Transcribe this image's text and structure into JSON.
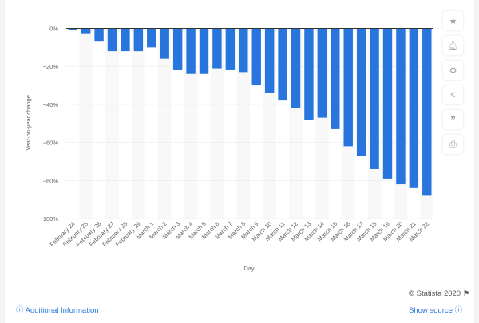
{
  "chart_data": {
    "type": "bar",
    "title": "",
    "xlabel": "Day",
    "ylabel": "Year-on-year change",
    "ylim": [
      -100,
      0
    ],
    "yticks": [
      0,
      -20,
      -40,
      -60,
      -80,
      -100
    ],
    "ytick_labels": [
      "0%",
      "−20%",
      "−40%",
      "−60%",
      "−80%",
      "−100%"
    ],
    "categories": [
      "February 24",
      "February 25",
      "February 26",
      "February 27",
      "February 28",
      "February 29",
      "March 1",
      "March 2",
      "March 3",
      "March 4",
      "March 5",
      "March 6",
      "March 7",
      "March 8",
      "March 9",
      "March 10",
      "March 11",
      "March 12",
      "March 13",
      "March 14",
      "March 15",
      "March 16",
      "March 17",
      "March 18",
      "March 19",
      "March 20",
      "March 21",
      "March 22"
    ],
    "values": [
      -1,
      -3,
      -7,
      -12,
      -12,
      -12,
      -10,
      -16,
      -22,
      -24,
      -24,
      -21,
      -22,
      -23,
      -30,
      -34,
      -38,
      -42,
      -48,
      -47,
      -53,
      -62,
      -67,
      -74,
      -79,
      -82,
      -84,
      -88
    ],
    "bar_color": "#2876dd",
    "grid": true
  },
  "footer": {
    "copyright": "© Statista 2020",
    "additional_info": "Additional Information",
    "show_source": "Show source"
  },
  "sidebar": {
    "icons": [
      "star-icon",
      "bell-icon",
      "gear-icon",
      "share-icon",
      "quote-icon",
      "print-icon"
    ]
  }
}
